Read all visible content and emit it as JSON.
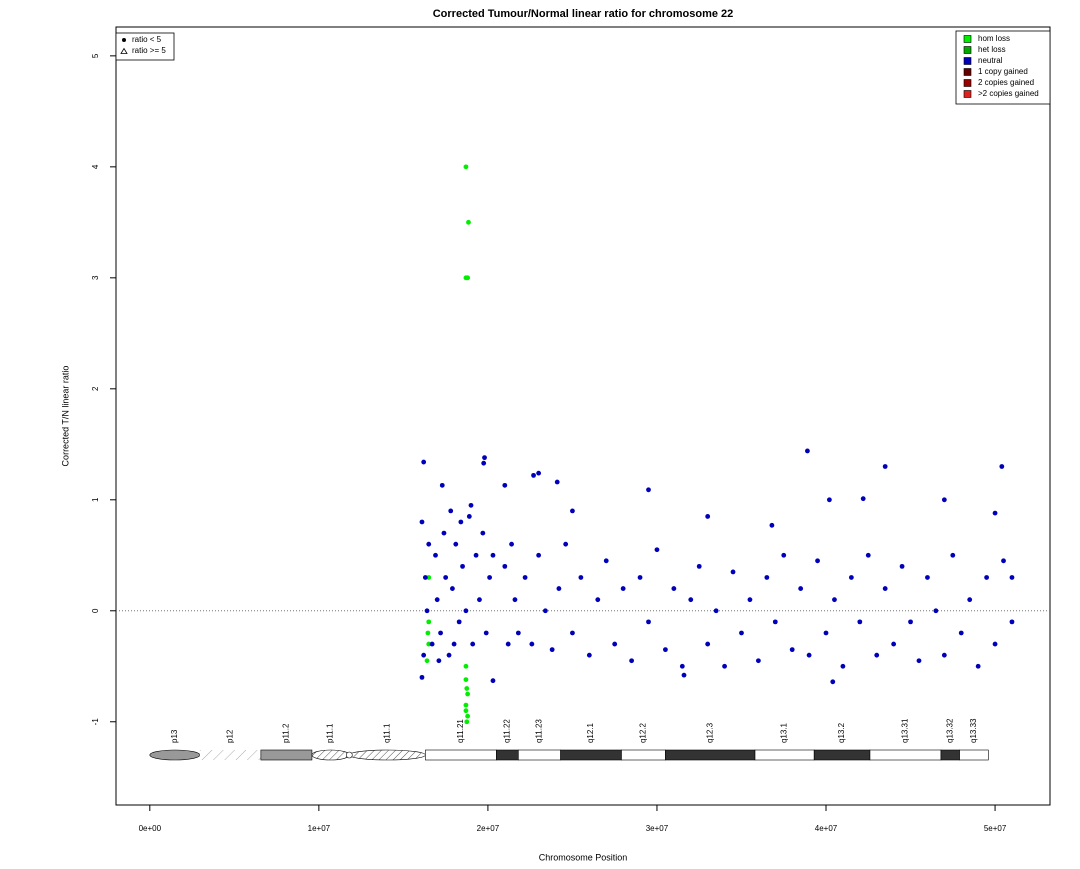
{
  "chart_data": {
    "type": "scatter",
    "title": "Corrected Tumour/Normal linear ratio for chromosome  22",
    "x_label": "Chromosome Position",
    "y_label": "Corrected T/N linear ratio",
    "xlim": [
      -2000000,
      53250000
    ],
    "ylim": [
      -1.75,
      5.26
    ],
    "xticks": [
      {
        "value": 0,
        "label": "0e+00"
      },
      {
        "value": 10000000,
        "label": "1e+07"
      },
      {
        "value": 20000000,
        "label": "2e+07"
      },
      {
        "value": 30000000,
        "label": "3e+07"
      },
      {
        "value": 40000000,
        "label": "4e+07"
      },
      {
        "value": 50000000,
        "label": "5e+07"
      }
    ],
    "yticks": [
      -1,
      0,
      1,
      2,
      3,
      4,
      5
    ],
    "hline": 0,
    "legend_position": "top-right",
    "shape_legend": [
      "ratio < 5",
      "ratio >= 5"
    ],
    "series": [
      {
        "name": "hom loss",
        "color": "#00ee00",
        "x": [
          18700000,
          18850000,
          18700000,
          18800000,
          16500000,
          16500000,
          16500000,
          16400000,
          16450000,
          18700000,
          18750000,
          18700000,
          18800000,
          18750000,
          18700000,
          18800000,
          18700000
        ],
        "values": [
          4.0,
          3.5,
          3.0,
          3.0,
          0.3,
          -0.1,
          -0.3,
          -0.45,
          -0.2,
          -0.5,
          -0.7,
          -0.85,
          -0.95,
          -1.0,
          -0.9,
          -0.75,
          -0.62
        ]
      },
      {
        "name": "het loss",
        "color": "#00a800",
        "x": [],
        "values": []
      },
      {
        "name": "neutral",
        "color": "#0000bb",
        "x": [
          16100000,
          16200000,
          16300000,
          16500000,
          16700000,
          16900000,
          17000000,
          17200000,
          17400000,
          17500000,
          17700000,
          17900000,
          18100000,
          18300000,
          18500000,
          18700000,
          18900000,
          19100000,
          19300000,
          19500000,
          19700000,
          19900000,
          20100000,
          20300000,
          16400000,
          17100000,
          18000000,
          19000000,
          17800000,
          18400000,
          21000000,
          21200000,
          21400000,
          21600000,
          21800000,
          22200000,
          22600000,
          23000000,
          23400000,
          23800000,
          24200000,
          24600000,
          25000000,
          25500000,
          26000000,
          26500000,
          27000000,
          27500000,
          28000000,
          28500000,
          29000000,
          29500000,
          30000000,
          30500000,
          31000000,
          31500000,
          32000000,
          32500000,
          33000000,
          33500000,
          34000000,
          34500000,
          35000000,
          35500000,
          36000000,
          36500000,
          37000000,
          37500000,
          38000000,
          38500000,
          39000000,
          39500000,
          40000000,
          40500000,
          41000000,
          41500000,
          42000000,
          42500000,
          43000000,
          43500000,
          44000000,
          44500000,
          45000000,
          45500000,
          46000000,
          46500000,
          47000000,
          47500000,
          48000000,
          48500000,
          49000000,
          49500000,
          50000000,
          50500000,
          51000000,
          51000000,
          16200000,
          19800000,
          19750000,
          21000000,
          23000000,
          22700000,
          24100000,
          29500000,
          38900000,
          43500000,
          50400000,
          40200000,
          42200000,
          47000000,
          17300000,
          20300000,
          16100000,
          40400000,
          31600000,
          50000000,
          33000000,
          25000000,
          36800000
        ],
        "values": [
          0.8,
          -0.4,
          0.3,
          0.6,
          -0.3,
          0.5,
          0.1,
          -0.2,
          0.7,
          0.3,
          -0.4,
          0.2,
          0.6,
          -0.1,
          0.4,
          0.0,
          0.85,
          -0.3,
          0.5,
          0.1,
          0.7,
          -0.2,
          0.3,
          0.5,
          0.0,
          -0.45,
          -0.3,
          0.95,
          0.9,
          0.8,
          0.4,
          -0.3,
          0.6,
          0.1,
          -0.2,
          0.3,
          -0.3,
          0.5,
          0.0,
          -0.35,
          0.2,
          0.6,
          -0.2,
          0.3,
          -0.4,
          0.1,
          0.45,
          -0.3,
          0.2,
          -0.45,
          0.3,
          -0.1,
          0.55,
          -0.35,
          0.2,
          -0.5,
          0.1,
          0.4,
          -0.3,
          0.0,
          -0.5,
          0.35,
          -0.2,
          0.1,
          -0.45,
          0.3,
          -0.1,
          0.5,
          -0.35,
          0.2,
          -0.4,
          0.45,
          -0.2,
          0.1,
          -0.5,
          0.3,
          -0.1,
          0.5,
          -0.4,
          0.2,
          -0.3,
          0.4,
          -0.1,
          -0.45,
          0.3,
          0.0,
          -0.4,
          0.5,
          -0.2,
          0.1,
          -0.5,
          0.3,
          -0.3,
          0.45,
          -0.1,
          0.3,
          1.34,
          1.38,
          1.33,
          1.13,
          1.24,
          1.22,
          1.16,
          1.09,
          1.44,
          1.3,
          1.3,
          1.0,
          1.01,
          1.0,
          1.13,
          -0.63,
          -0.6,
          -0.64,
          -0.58,
          0.88,
          0.85,
          0.9,
          0.77
        ]
      },
      {
        "name": "1 copy gained",
        "color": "#660000",
        "x": [],
        "values": []
      },
      {
        "name": "2 copies gained",
        "color": "#990000",
        "x": [],
        "values": []
      },
      {
        "name": ">2 copies gained",
        "color": "#dd2222",
        "x": [],
        "values": []
      }
    ],
    "ideogram": [
      {
        "name": "p13",
        "start": 0,
        "end": 2960000,
        "stain": "gvar"
      },
      {
        "name": "p12",
        "start": 2960000,
        "end": 6570000,
        "stain": "stalk"
      },
      {
        "name": "p11.2",
        "start": 6570000,
        "end": 9590000,
        "stain": "gpos50"
      },
      {
        "name": "p11.1",
        "start": 9590000,
        "end": 11800000,
        "stain": "acen"
      },
      {
        "name": "q11.1",
        "start": 11800000,
        "end": 16300000,
        "stain": "acen"
      },
      {
        "name": "q11.21",
        "start": 16300000,
        "end": 20500000,
        "stain": "gneg"
      },
      {
        "name": "q11.22",
        "start": 20500000,
        "end": 21800000,
        "stain": "gpos100"
      },
      {
        "name": "q11.23",
        "start": 21800000,
        "end": 24300000,
        "stain": "gneg"
      },
      {
        "name": "q12.1",
        "start": 24300000,
        "end": 27900000,
        "stain": "gpos100"
      },
      {
        "name": "q12.2",
        "start": 27900000,
        "end": 30500000,
        "stain": "gneg"
      },
      {
        "name": "q12.3",
        "start": 30500000,
        "end": 35800000,
        "stain": "gpos100"
      },
      {
        "name": "q13.1",
        "start": 35800000,
        "end": 39300000,
        "stain": "gneg"
      },
      {
        "name": "q13.2",
        "start": 39300000,
        "end": 42600000,
        "stain": "gpos100"
      },
      {
        "name": "q13.31",
        "start": 42600000,
        "end": 46800000,
        "stain": "gneg"
      },
      {
        "name": "q13.32",
        "start": 46800000,
        "end": 47900000,
        "stain": "gpos100"
      },
      {
        "name": "q13.33",
        "start": 47900000,
        "end": 49600000,
        "stain": "gneg"
      }
    ]
  }
}
